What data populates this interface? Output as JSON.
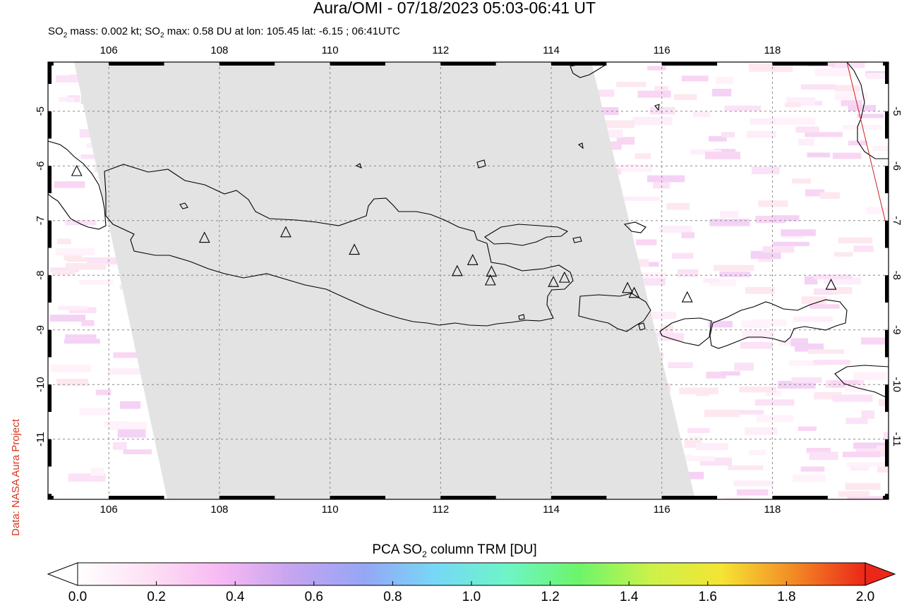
{
  "title": "Aura/OMI - 07/18/2023 05:03-06:41 UT",
  "subtitle": {
    "part1": "SO",
    "sub1": "2",
    "part2": " mass: 0.002 kt; SO",
    "sub2": "2",
    "part3": " max: 0.58 DU at lon: 105.45 lat: -6.15 ; 06:41UTC"
  },
  "credit": "Data: NASA Aura Project",
  "map": {
    "lon_range": [
      104.9,
      120.1
    ],
    "lat_range": [
      -12.1,
      -4.1
    ],
    "lon_ticks": [
      "106",
      "108",
      "110",
      "112",
      "114",
      "116",
      "118"
    ],
    "lat_ticks": [
      "-5",
      "-6",
      "-7",
      "-8",
      "-9",
      "-10",
      "-11"
    ],
    "volcanoes": [
      {
        "lon": 105.42,
        "lat": -6.1
      },
      {
        "lon": 107.73,
        "lat": -7.32
      },
      {
        "lon": 109.2,
        "lat": -7.22
      },
      {
        "lon": 110.44,
        "lat": -7.54
      },
      {
        "lon": 112.3,
        "lat": -7.93
      },
      {
        "lon": 112.58,
        "lat": -7.73
      },
      {
        "lon": 112.92,
        "lat": -7.94
      },
      {
        "lon": 112.9,
        "lat": -8.1
      },
      {
        "lon": 114.04,
        "lat": -8.13
      },
      {
        "lon": 114.24,
        "lat": -8.05
      },
      {
        "lon": 115.38,
        "lat": -8.24
      },
      {
        "lon": 115.5,
        "lat": -8.33
      },
      {
        "lon": 116.46,
        "lat": -8.41
      },
      {
        "lon": 119.06,
        "lat": -8.18
      }
    ]
  },
  "colorbar": {
    "title_main": "PCA SO",
    "title_sub": "2",
    "title_tail": " column TRM [DU]",
    "ticks": [
      "0.0",
      "0.2",
      "0.4",
      "0.6",
      "0.8",
      "1.0",
      "1.2",
      "1.4",
      "1.6",
      "1.8",
      "2.0"
    ],
    "colors": [
      "#ffffff",
      "#fde0f4",
      "#f7b9f3",
      "#c5a4f0",
      "#96a6f6",
      "#76d8f6",
      "#6df5c8",
      "#6cf56a",
      "#cbf24a",
      "#f5e433",
      "#f38a25",
      "#ec2618"
    ]
  }
}
